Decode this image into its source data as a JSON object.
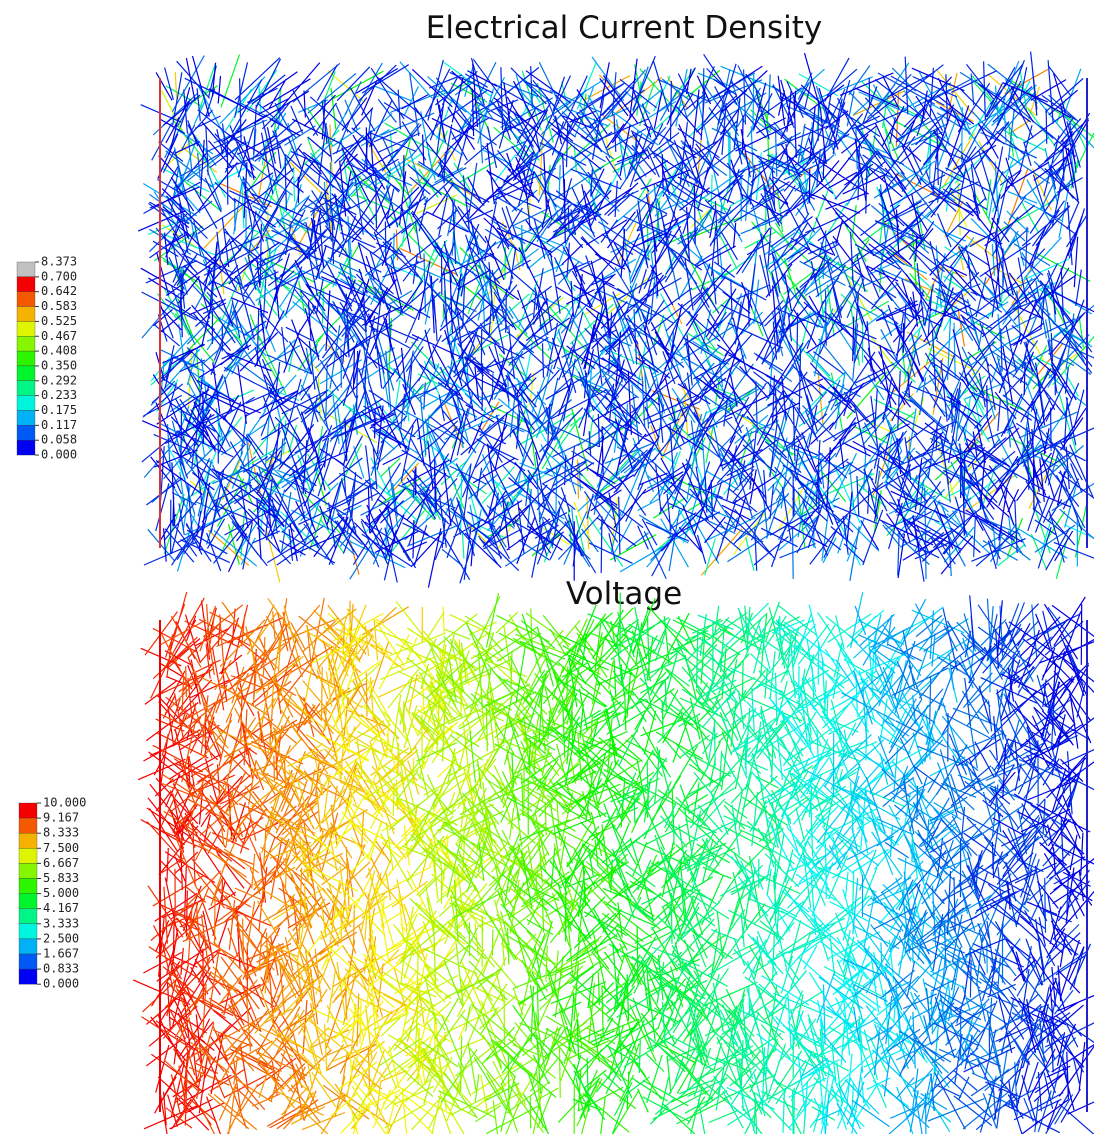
{
  "panels": [
    {
      "title": "Electrical Current Density",
      "legend": [
        "8.373",
        "0.700",
        "0.642",
        "0.583",
        "0.525",
        "0.467",
        "0.408",
        "0.350",
        "0.292",
        "0.233",
        "0.175",
        "0.117",
        "0.058",
        "0.000"
      ]
    },
    {
      "title": "Voltage",
      "legend": [
        "10.000",
        "9.167",
        "8.333",
        "7.500",
        "6.667",
        "5.833",
        "5.000",
        "4.167",
        "3.333",
        "2.500",
        "1.667",
        "0.833",
        "0.000"
      ]
    }
  ]
}
